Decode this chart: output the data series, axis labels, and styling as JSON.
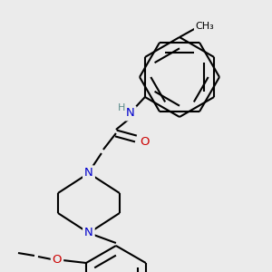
{
  "bg_color": "#ebebeb",
  "bond_color": "#000000",
  "bond_width": 1.5,
  "atom_colors": {
    "N": "#0000cc",
    "O": "#cc0000",
    "H": "#5a8a8a",
    "C": "#000000"
  },
  "font_size": 8.5
}
